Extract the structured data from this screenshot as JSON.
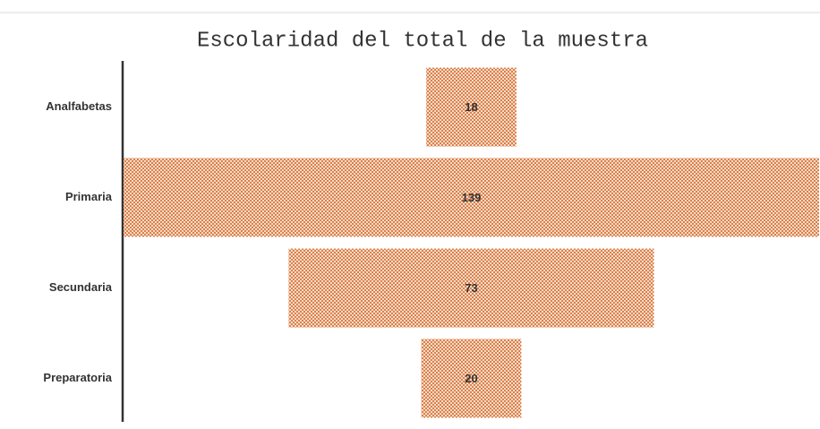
{
  "chart_data": {
    "type": "funnel",
    "title": "Escolaridad del total de la muestra",
    "categories": [
      "Analfabetas",
      "Primaria",
      "Secundaria",
      "Preparatoria"
    ],
    "values": [
      18,
      139,
      73,
      20
    ],
    "color": "#d9773a"
  }
}
